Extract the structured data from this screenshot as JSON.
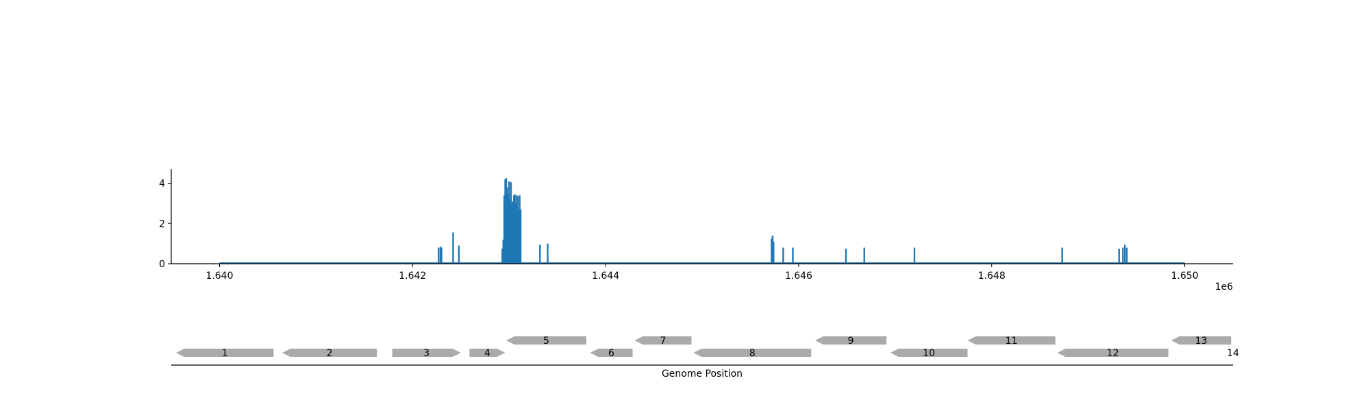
{
  "chart_data": [
    {
      "type": "bar",
      "title": "",
      "xlabel": "",
      "ylabel": "",
      "xlim": [
        1639500,
        1650500
      ],
      "ylim": [
        0,
        4.7
      ],
      "x_offset_label": "1e6",
      "x_ticks": [
        {
          "value": 1640000,
          "label": "1.640"
        },
        {
          "value": 1642000,
          "label": "1.642"
        },
        {
          "value": 1644000,
          "label": "1.644"
        },
        {
          "value": 1646000,
          "label": "1.646"
        },
        {
          "value": 1648000,
          "label": "1.648"
        },
        {
          "value": 1650000,
          "label": "1.650"
        }
      ],
      "y_ticks": [
        {
          "value": 0,
          "label": "0"
        },
        {
          "value": 2,
          "label": "2"
        },
        {
          "value": 4,
          "label": "4"
        }
      ],
      "baseline_range": [
        1640000,
        1650000
      ],
      "color": "#1f77b4",
      "x": [
        1642270,
        1642290,
        1642300,
        1642420,
        1642480,
        1642930,
        1642940,
        1642950,
        1642960,
        1642970,
        1642980,
        1642990,
        1643000,
        1643010,
        1643020,
        1643030,
        1643040,
        1643050,
        1643060,
        1643070,
        1643080,
        1643090,
        1643100,
        1643110,
        1643120,
        1643320,
        1643400,
        1645720,
        1645730,
        1645740,
        1645840,
        1645940,
        1646490,
        1646680,
        1647200,
        1648730,
        1649320,
        1649360,
        1649380,
        1649400
      ],
      "values": [
        0.8,
        0.85,
        0.8,
        1.55,
        0.9,
        0.75,
        1.2,
        3.4,
        4.2,
        4.25,
        3.8,
        3.5,
        4.1,
        3.2,
        4.05,
        3.0,
        3.1,
        3.4,
        3.45,
        3.0,
        3.4,
        3.35,
        2.7,
        3.4,
        2.7,
        0.95,
        1.0,
        1.25,
        1.4,
        1.1,
        0.8,
        0.8,
        0.75,
        0.8,
        0.8,
        0.8,
        0.75,
        0.8,
        0.95,
        0.8
      ]
    },
    {
      "type": "gene_track",
      "xlabel": "Genome Position",
      "color": "#aaaaaa",
      "genes": [
        {
          "label": "1",
          "start": 1639550,
          "end": 1640560,
          "strand": "-",
          "row": 0
        },
        {
          "label": "2",
          "start": 1640650,
          "end": 1641630,
          "strand": "-",
          "row": 0
        },
        {
          "label": "3",
          "start": 1641790,
          "end": 1642500,
          "strand": "+",
          "row": 0
        },
        {
          "label": "4",
          "start": 1642590,
          "end": 1642960,
          "strand": "+",
          "row": 0
        },
        {
          "label": "5",
          "start": 1642970,
          "end": 1643800,
          "strand": "-",
          "row": 1
        },
        {
          "label": "6",
          "start": 1643840,
          "end": 1644280,
          "strand": "-",
          "row": 0
        },
        {
          "label": "7",
          "start": 1644300,
          "end": 1644890,
          "strand": "-",
          "row": 1
        },
        {
          "label": "8",
          "start": 1644910,
          "end": 1646130,
          "strand": "-",
          "row": 0
        },
        {
          "label": "9",
          "start": 1646170,
          "end": 1646910,
          "strand": "-",
          "row": 1
        },
        {
          "label": "10",
          "start": 1646950,
          "end": 1647750,
          "strand": "-",
          "row": 0
        },
        {
          "label": "11",
          "start": 1647750,
          "end": 1648660,
          "strand": "-",
          "row": 1
        },
        {
          "label": "12",
          "start": 1648680,
          "end": 1649830,
          "strand": "-",
          "row": 0
        },
        {
          "label": "13",
          "start": 1649860,
          "end": 1650480,
          "strand": "-",
          "row": 1
        },
        {
          "label": "14",
          "start": null,
          "end": null,
          "strand": "",
          "row": 0
        }
      ]
    }
  ]
}
